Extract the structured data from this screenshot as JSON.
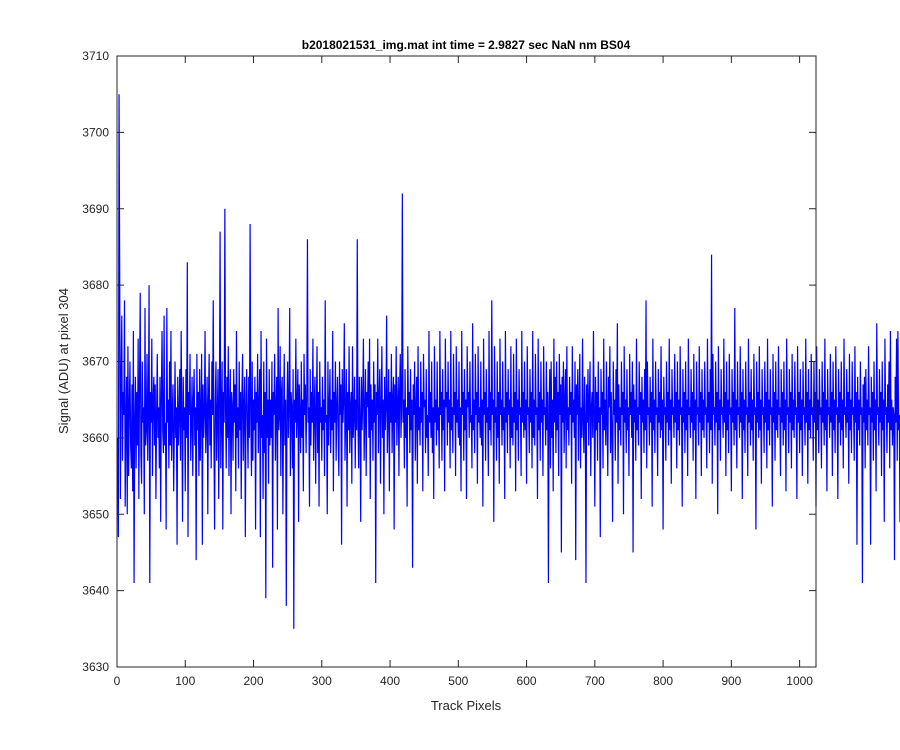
{
  "chart_data": {
    "type": "line",
    "title": "b2018021531_img.mat int time = 2.9827 sec  NaN nm BS04",
    "xlabel": "Track Pixels",
    "ylabel": "Signal (ADU) at pixel 304",
    "xlim": [
      0,
      1024
    ],
    "ylim": [
      3630,
      3710
    ],
    "xticks": [
      0,
      100,
      200,
      300,
      400,
      500,
      600,
      700,
      800,
      900,
      1000
    ],
    "yticks": [
      3630,
      3640,
      3650,
      3660,
      3670,
      3680,
      3690,
      3700,
      3710
    ],
    "grid": false,
    "series": [
      {
        "color": "#0000ff",
        "x_start": 1,
        "x_step": 1,
        "values": [
          3660,
          3647,
          3705,
          3680,
          3652,
          3668,
          3676,
          3657,
          3666,
          3663,
          3678,
          3651,
          3662,
          3668,
          3650,
          3672,
          3655,
          3664,
          3670,
          3659,
          3656,
          3667,
          3653,
          3674,
          3641,
          3662,
          3668,
          3656,
          3666,
          3659,
          3673,
          3652,
          3667,
          3679,
          3658,
          3654,
          3670,
          3662,
          3664,
          3650,
          3677,
          3659,
          3661,
          3671,
          3657,
          3664,
          3680,
          3641,
          3666,
          3662,
          3673,
          3655,
          3665,
          3668,
          3659,
          3667,
          3652,
          3663,
          3671,
          3660,
          3664,
          3656,
          3668,
          3649,
          3666,
          3674,
          3661,
          3658,
          3676,
          3659,
          3662,
          3648,
          3677,
          3662,
          3665,
          3656,
          3670,
          3659,
          3674,
          3657,
          3663,
          3667,
          3653,
          3661,
          3670,
          3660,
          3664,
          3646,
          3668,
          3659,
          3663,
          3669,
          3657,
          3674,
          3663,
          3649,
          3668,
          3661,
          3664,
          3653,
          3669,
          3660,
          3683,
          3647,
          3666,
          3663,
          3671,
          3657,
          3662,
          3668,
          3655,
          3665,
          3669,
          3659,
          3664,
          3644,
          3671,
          3661,
          3666,
          3655,
          3669,
          3657,
          3664,
          3671,
          3646,
          3667,
          3660,
          3663,
          3674,
          3658,
          3662,
          3668,
          3650,
          3665,
          3671,
          3659,
          3665,
          3656,
          3670,
          3663,
          3678,
          3660,
          3648,
          3665,
          3670,
          3657,
          3663,
          3669,
          3652,
          3664,
          3687,
          3656,
          3663,
          3670,
          3648,
          3666,
          3662,
          3690,
          3664,
          3656,
          3668,
          3660,
          3672,
          3655,
          3664,
          3669,
          3650,
          3666,
          3664,
          3657,
          3669,
          3662,
          3667,
          3653,
          3674,
          3660,
          3664,
          3656,
          3670,
          3661,
          3666,
          3652,
          3666,
          3671,
          3657,
          3664,
          3668,
          3647,
          3664,
          3669,
          3662,
          3656,
          3668,
          3660,
          3688,
          3663,
          3655,
          3670,
          3657,
          3665,
          3661,
          3668,
          3648,
          3666,
          3662,
          3671,
          3658,
          3664,
          3669,
          3647,
          3674,
          3660,
          3663,
          3652,
          3670,
          3658,
          3666,
          3639,
          3673,
          3660,
          3665,
          3654,
          3669,
          3659,
          3665,
          3660,
          3670,
          3643,
          3666,
          3663,
          3671,
          3657,
          3664,
          3668,
          3648,
          3677,
          3661,
          3663,
          3672,
          3655,
          3666,
          3668,
          3650,
          3663,
          3671,
          3659,
          3665,
          3638,
          3664,
          3670,
          3660,
          3664,
          3677,
          3655,
          3666,
          3664,
          3656,
          3669,
          3635,
          3665,
          3662,
          3673,
          3660,
          3664,
          3669,
          3649,
          3667,
          3663,
          3658,
          3670,
          3660,
          3665,
          3653,
          3671,
          3663,
          3667,
          3658,
          3665,
          3686,
          3662,
          3664,
          3651,
          3669,
          3659,
          3666,
          3662,
          3673,
          3657,
          3664,
          3668,
          3654,
          3663,
          3672,
          3658,
          3666,
          3651,
          3670,
          3662,
          3664,
          3657,
          3668,
          3661,
          3665,
          3655,
          3678,
          3662,
          3663,
          3650,
          3670,
          3659,
          3664,
          3669,
          3658,
          3665,
          3661,
          3674,
          3653,
          3666,
          3662,
          3670,
          3657,
          3664,
          3668,
          3661,
          3655,
          3670,
          3663,
          3667,
          3646,
          3669,
          3662,
          3665,
          3675,
          3657,
          3663,
          3669,
          3651,
          3666,
          3661,
          3672,
          3658,
          3664,
          3666,
          3654,
          3672,
          3660,
          3663,
          3668,
          3656,
          3665,
          3661,
          3686,
          3662,
          3656,
          3668,
          3663,
          3649,
          3668,
          3661,
          3665,
          3673,
          3657,
          3663,
          3669,
          3655,
          3666,
          3664,
          3670,
          3660,
          3673,
          3652,
          3667,
          3661,
          3665,
          3657,
          3670,
          3662,
          3667,
          3641,
          3666,
          3663,
          3673,
          3658,
          3665,
          3669,
          3654,
          3664,
          3672,
          3660,
          3665,
          3650,
          3668,
          3661,
          3664,
          3676,
          3658,
          3663,
          3669,
          3653,
          3666,
          3662,
          3671,
          3658,
          3665,
          3668,
          3648,
          3667,
          3662,
          3672,
          3659,
          3664,
          3668,
          3655,
          3666,
          3671,
          3660,
          3664,
          3692,
          3662,
          3665,
          3656,
          3669,
          3660,
          3664,
          3651,
          3672,
          3663,
          3666,
          3658,
          3669,
          3661,
          3665,
          3643,
          3667,
          3663,
          3670,
          3657,
          3664,
          3668,
          3654,
          3672,
          3661,
          3664,
          3659,
          3670,
          3662,
          3666,
          3653,
          3671,
          3664,
          3665,
          3658,
          3669,
          3660,
          3663,
          3655,
          3674,
          3662,
          3666,
          3660,
          3670,
          3658,
          3664,
          3652,
          3672,
          3662,
          3665,
          3659,
          3670,
          3661,
          3664,
          3656,
          3674,
          3663,
          3666,
          3657,
          3669,
          3661,
          3665,
          3653,
          3673,
          3664,
          3666,
          3659,
          3670,
          3662,
          3665,
          3656,
          3674,
          3661,
          3664,
          3658,
          3671,
          3663,
          3666,
          3655,
          3672,
          3662,
          3665,
          3660,
          3670,
          3659,
          3664,
          3653,
          3674,
          3663,
          3666,
          3657,
          3669,
          3661,
          3665,
          3652,
          3672,
          3664,
          3666,
          3660,
          3670,
          3662,
          3663,
          3656,
          3675,
          3661,
          3665,
          3658,
          3671,
          3663,
          3666,
          3654,
          3672,
          3662,
          3664,
          3660,
          3670,
          3659,
          3665,
          3651,
          3673,
          3663,
          3666,
          3657,
          3669,
          3662,
          3664,
          3655,
          3674,
          3661,
          3666,
          3659,
          3678,
          3663,
          3665,
          3649,
          3672,
          3662,
          3664,
          3657,
          3670,
          3660,
          3666,
          3654,
          3673,
          3663,
          3665,
          3659,
          3670,
          3661,
          3664,
          3652,
          3674,
          3662,
          3666,
          3658,
          3669,
          3663,
          3665,
          3656,
          3672,
          3660,
          3664,
          3659,
          3671,
          3662,
          3666,
          3653,
          3673,
          3661,
          3665,
          3657,
          3669,
          3663,
          3664,
          3655,
          3674,
          3662,
          3666,
          3660,
          3670,
          3661,
          3665,
          3654,
          3672,
          3663,
          3664,
          3658,
          3669,
          3662,
          3666,
          3656,
          3674,
          3660,
          3665,
          3659,
          3671,
          3663,
          3664,
          3652,
          3673,
          3661,
          3666,
          3657,
          3670,
          3662,
          3665,
          3655,
          3672,
          3663,
          3664,
          3659,
          3670,
          3661,
          3666,
          3641,
          3664,
          3669,
          3656,
          3670,
          3660,
          3665,
          3653,
          3673,
          3662,
          3668,
          3658,
          3670,
          3661,
          3666,
          3655,
          3671,
          3663,
          3667,
          3645,
          3668,
          3662,
          3670,
          3658,
          3665,
          3669,
          3656,
          3672,
          3661,
          3664,
          3659,
          3668,
          3663,
          3666,
          3654,
          3672,
          3662,
          3665,
          3660,
          3670,
          3644,
          3667,
          3663,
          3669,
          3657,
          3665,
          3671,
          3656,
          3664,
          3660,
          3673,
          3662,
          3658,
          3668,
          3663,
          3641,
          3667,
          3662,
          3669,
          3659,
          3665,
          3670,
          3655,
          3664,
          3666,
          3660,
          3674,
          3663,
          3651,
          3668,
          3661,
          3666,
          3657,
          3670,
          3662,
          3664,
          3647,
          3669,
          3663,
          3666,
          3656,
          3673,
          3661,
          3665,
          3659,
          3670,
          3662,
          3655,
          3668,
          3664,
          3672,
          3658,
          3666,
          3661,
          3649,
          3670,
          3663,
          3665,
          3657,
          3669,
          3662,
          3675,
          3654,
          3667,
          3661,
          3664,
          3659,
          3670,
          3663,
          3666,
          3650,
          3672,
          3662,
          3665,
          3658,
          3669,
          3661,
          3664,
          3655,
          3671,
          3663,
          3666,
          3660,
          3670,
          3645,
          3667,
          3662,
          3665,
          3657,
          3673,
          3661,
          3664,
          3659,
          3670,
          3663,
          3666,
          3652,
          3668,
          3662,
          3665,
          3658,
          3669,
          3661,
          3678,
          3656,
          3670,
          3663,
          3664,
          3659,
          3668,
          3662,
          3666,
          3651,
          3673,
          3661,
          3665,
          3658,
          3670,
          3663,
          3664,
          3655,
          3669,
          3662,
          3666,
          3660,
          3672,
          3661,
          3665,
          3648,
          3668,
          3663,
          3664,
          3657,
          3670,
          3662,
          3666,
          3659,
          3673,
          3661,
          3665,
          3654,
          3669,
          3663,
          3664,
          3660,
          3671,
          3662,
          3666,
          3656,
          3670,
          3661,
          3665,
          3659,
          3672,
          3663,
          3664,
          3651,
          3669,
          3662,
          3666,
          3658,
          3670,
          3661,
          3665,
          3655,
          3673,
          3663,
          3664,
          3660,
          3669,
          3662,
          3666,
          3657,
          3671,
          3661,
          3665,
          3652,
          3670,
          3663,
          3664,
          3659,
          3672,
          3662,
          3666,
          3655,
          3669,
          3661,
          3665,
          3660,
          3670,
          3663,
          3664,
          3656,
          3673,
          3662,
          3666,
          3658,
          3669,
          3661,
          3684,
          3654,
          3671,
          3663,
          3664,
          3659,
          3670,
          3662,
          3666,
          3650,
          3672,
          3661,
          3665,
          3657,
          3669,
          3663,
          3664,
          3660,
          3673,
          3662,
          3666,
          3655,
          3670,
          3661,
          3665,
          3658,
          3671,
          3663,
          3664,
          3653,
          3669,
          3662,
          3666,
          3659,
          3677,
          3661,
          3665,
          3656,
          3670,
          3663,
          3664,
          3660,
          3672,
          3662,
          3666,
          3652,
          3669,
          3661,
          3665,
          3658,
          3670,
          3663,
          3664,
          3655,
          3673,
          3662,
          3666,
          3659,
          3669,
          3661,
          3665,
          3657,
          3671,
          3663,
          3664,
          3648,
          3670,
          3662,
          3666,
          3660,
          3672,
          3661,
          3665,
          3654,
          3669,
          3663,
          3664,
          3658,
          3670,
          3662,
          3666,
          3656,
          3673,
          3661,
          3665,
          3659,
          3669,
          3663,
          3664,
          3651,
          3671,
          3662,
          3666,
          3657,
          3670,
          3661,
          3665,
          3660,
          3672,
          3663,
          3664,
          3655,
          3669,
          3662,
          3666,
          3659,
          3670,
          3661,
          3665,
          3653,
          3673,
          3663,
          3664,
          3658,
          3669,
          3662,
          3666,
          3656,
          3671,
          3661,
          3665,
          3660,
          3670,
          3663,
          3664,
          3652,
          3672,
          3662,
          3666,
          3658,
          3669,
          3661,
          3665,
          3655,
          3670,
          3663,
          3664,
          3659,
          3673,
          3662,
          3666,
          3654,
          3669,
          3661,
          3665,
          3660,
          3671,
          3663,
          3664,
          3657,
          3670,
          3662,
          3666,
          3651,
          3672,
          3661,
          3665,
          3658,
          3669,
          3663,
          3664,
          3656,
          3670,
          3662,
          3666,
          3659,
          3673,
          3661,
          3665,
          3653,
          3669,
          3663,
          3664,
          3660,
          3671,
          3662,
          3666,
          3655,
          3670,
          3661,
          3665,
          3658,
          3672,
          3663,
          3664,
          3652,
          3669,
          3662,
          3666,
          3659,
          3670,
          3661,
          3665,
          3656,
          3673,
          3663,
          3664,
          3660,
          3669,
          3662,
          3666,
          3654,
          3671,
          3661,
          3665,
          3658,
          3670,
          3663,
          3664,
          3657,
          3672,
          3662,
          3666,
          3646,
          3668,
          3661,
          3665,
          3659,
          3670,
          3663,
          3664,
          3641,
          3667,
          3662,
          3668,
          3656,
          3669,
          3661,
          3665,
          3659,
          3672,
          3663,
          3664,
          3646,
          3668,
          3662,
          3666,
          3657,
          3670,
          3661,
          3665,
          3653,
          3675,
          3663,
          3664,
          3659,
          3669,
          3662,
          3666,
          3655,
          3670,
          3661,
          3665,
          3649,
          3673,
          3663,
          3664,
          3658,
          3667,
          3662,
          3670,
          3656,
          3674,
          3661,
          3665,
          3659,
          3664,
          3663,
          3644,
          3668,
          3662,
          3673,
          3657,
          3674,
          3661,
          3663,
          3649,
          3670,
          3658,
          3674,
          3660
        ]
      }
    ]
  }
}
